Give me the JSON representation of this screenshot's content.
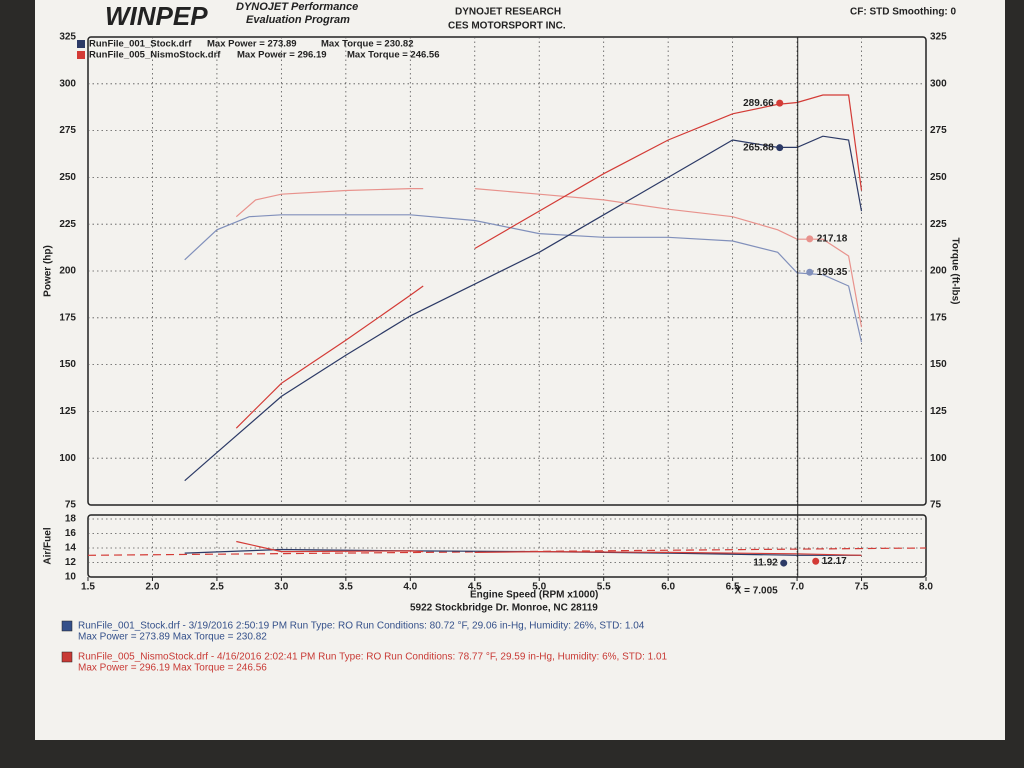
{
  "header": {
    "logo": "WINPEP",
    "program_line1": "DYNOJET Performance",
    "program_line2": "Evaluation Program",
    "company_line1": "DYNOJET RESEARCH",
    "company_line2": "CES MOTORSPORT INC.",
    "settings": "CF: STD  Smoothing: 0"
  },
  "address": "5922 Stockbridge Dr. Monroe, NC 28119",
  "run_details": [
    {
      "line1": "RunFile_001_Stock.drf - 3/19/2016 2:50:19 PM  Run Type: RO  Run Conditions: 80.72 °F, 29.06 in-Hg,  Humidity:  26%, STD: 1.04",
      "line2": "Max Power = 273.89  Max Torque = 230.82",
      "color": "#34508a"
    },
    {
      "line1": "RunFile_005_NismoStock.drf - 4/16/2016 2:02:41 PM  Run Type: RO  Run Conditions: 78.77 °F, 29.59 in-Hg,  Humidity:  6%, STD: 1.01",
      "line2": "Max Power = 296.19  Max Torque = 246.56",
      "color": "#c83a35"
    }
  ],
  "chart_data": [
    {
      "type": "line",
      "ylabel": "Power (hp)",
      "y2label": "Torque (ft-lbs)",
      "xlim": [
        1.5,
        8.0
      ],
      "xticks": [
        1.5,
        2,
        2.5,
        3,
        3.5,
        4,
        4.5,
        5,
        5.5,
        6,
        6.5,
        7,
        7.5,
        8
      ],
      "ylim": [
        75,
        325
      ],
      "yticks": [
        75,
        100,
        125,
        150,
        175,
        200,
        225,
        250,
        275,
        300,
        325
      ],
      "y2lim": [
        75,
        325
      ],
      "y2ticks": [
        75,
        100,
        125,
        150,
        175,
        200,
        225,
        250,
        275,
        300,
        325
      ],
      "grid": true,
      "cursor": {
        "x": 7.005,
        "label": "X = 7.005"
      },
      "runs": [
        {
          "name": "RunFile_001_Stock.drf",
          "max_power_label": "Max Power = 273.89",
          "max_torque_label": "Max Torque = 230.82",
          "power": {
            "color": "#2c3a66",
            "x": [
              2.25,
              2.5,
              3.0,
              3.5,
              4.0,
              4.5,
              5.0,
              5.5,
              6.0,
              6.5,
              6.85,
              7.0,
              7.2,
              7.4,
              7.5
            ],
            "values": [
              88,
              103,
              133,
              155,
              176,
              193,
              210,
              230,
              250,
              270,
              266,
              266,
              272,
              270,
              232
            ],
            "cursor_value": 265.88
          },
          "torque": {
            "color": "#8190bb",
            "axis": "y2",
            "x": [
              2.25,
              2.5,
              2.75,
              3.0,
              3.5,
              4.0,
              4.5,
              5.0,
              5.5,
              6.0,
              6.5,
              6.85,
              7.0,
              7.2,
              7.4,
              7.5
            ],
            "values": [
              206,
              222,
              229,
              230,
              230,
              230,
              227,
              220,
              218,
              218,
              216,
              210,
              199,
              198,
              192,
              162
            ],
            "cursor_value": 199.35
          }
        },
        {
          "name": "RunFile_005_NismoStock.drf",
          "max_power_label": "Max Power = 296.19",
          "max_torque_label": "Max Torque = 246.56",
          "power": {
            "color": "#d33b36",
            "x": [
              2.65,
              3.0,
              3.5,
              4.0,
              4.1,
              4.3,
              4.5,
              5.0,
              5.5,
              6.0,
              6.5,
              6.85,
              7.0,
              7.2,
              7.4,
              7.5
            ],
            "values": [
              116,
              140,
              163,
              187,
              192,
              null,
              212,
              232,
              252,
              270,
              284,
              289,
              290,
              294,
              294,
              243
            ],
            "cursor_value": 289.66
          },
          "torque": {
            "color": "#e8928c",
            "axis": "y2",
            "x": [
              2.65,
              2.8,
              3.0,
              3.5,
              4.0,
              4.1,
              4.3,
              4.5,
              5.0,
              5.5,
              6.0,
              6.5,
              6.85,
              7.0,
              7.2,
              7.4,
              7.5
            ],
            "values": [
              229,
              238,
              241,
              243,
              244,
              244,
              null,
              244,
              241,
              238,
              233,
              229,
              222,
              217,
              217,
              208,
              170
            ],
            "cursor_value": 217.18
          }
        }
      ]
    },
    {
      "type": "line",
      "ylabel": "Air/Fuel",
      "xlabel": "Engine Speed (RPM x1000)",
      "xlim": [
        1.5,
        8.0
      ],
      "xticks": [
        1.5,
        {
          "value": 2,
          "label": "2.0"
        },
        2.5,
        {
          "value": 3,
          "label": "3.0"
        },
        3.5,
        {
          "value": 4,
          "label": "4.0"
        },
        4.5,
        {
          "value": 5,
          "label": "5.0"
        },
        5.5,
        {
          "value": 6,
          "label": "6.0"
        },
        6.5,
        {
          "value": 7,
          "label": "7.0"
        },
        7.5,
        {
          "value": 8,
          "label": "8.0"
        }
      ],
      "ylim": [
        10,
        18
      ],
      "yticks": [
        10,
        12,
        14,
        16,
        18
      ],
      "grid": true,
      "reference": {
        "color": "#d33b36",
        "x": [
          1.5,
          8.0
        ],
        "values": [
          13,
          14
        ]
      },
      "series": [
        {
          "color": "#2c3a66",
          "x": [
            2.25,
            3.0,
            4.0,
            5.0,
            6.0,
            7.0,
            7.5
          ],
          "values": [
            13.3,
            13.8,
            13.6,
            13.5,
            13.3,
            13.0,
            13.0
          ],
          "cursor_value": 11.92
        },
        {
          "color": "#d33b36",
          "x": [
            2.65,
            3.0,
            4.0,
            4.1,
            4.3,
            4.5,
            5.0,
            6.0,
            7.0,
            7.5
          ],
          "values": [
            14.9,
            13.5,
            13.6,
            13.5,
            null,
            13.4,
            13.5,
            13.4,
            13.2,
            13.0
          ],
          "cursor_value": 12.17
        }
      ]
    }
  ]
}
